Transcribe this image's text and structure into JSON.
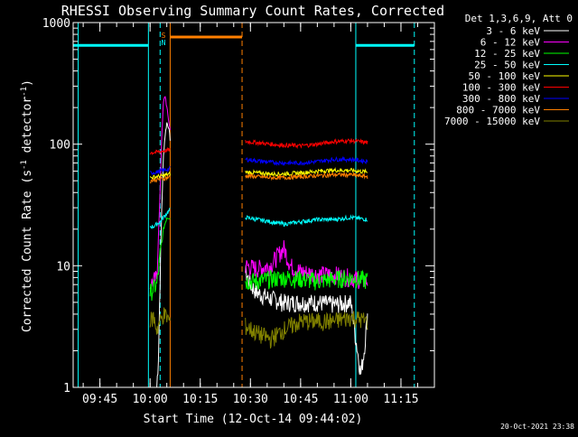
{
  "chart_data": {
    "type": "line",
    "title": "RHESSI Observing Summary Count Rates, Corrected",
    "xlabel": "Start Time (12-Oct-14 09:44:02)",
    "ylabel": "Corrected Count Rate (s",
    "ylabel_sup1": "-1",
    "ylabel_mid": " detector",
    "ylabel_sup2": "-1",
    "ylabel_end": ")",
    "yscale": "log",
    "xlim": [
      "09:37",
      "11:25"
    ],
    "ylim": [
      1,
      1000
    ],
    "x_ticks": [
      "09:45",
      "10:00",
      "10:15",
      "10:30",
      "10:45",
      "11:00",
      "11:15"
    ],
    "y_ticks": [
      "1",
      "10",
      "100",
      "1000"
    ],
    "legend_title": "Det 1,3,6,9, Att 0",
    "legend_placement": "right",
    "timestamp": "20-Oct-2021 23:38",
    "flag_labels": [
      "S",
      "N"
    ],
    "series": [
      {
        "name": "3 - 6 keV",
        "color": "#ffffff",
        "segments": [
          {
            "x": [
              "10:02:00",
              "10:02:30",
              "10:03:00",
              "10:03:30",
              "10:04:00",
              "10:04:30",
              "10:05:00",
              "10:05:30",
              "10:06:00"
            ],
            "y": [
              1,
              1.8,
              8,
              30,
              80,
              120,
              150,
              140,
              110
            ]
          },
          {
            "x": [
              "10:28:30",
              "10:30:00",
              "10:32:00",
              "10:35:00",
              "10:40:00",
              "10:45:00",
              "10:50:00",
              "10:55:00",
              "11:00:00",
              "11:02:00",
              "11:03:00",
              "11:04:00",
              "11:05:00"
            ],
            "y": [
              9,
              7,
              6,
              5.5,
              5,
              5,
              5,
              4.8,
              5,
              2,
              1.3,
              2,
              4
            ]
          }
        ]
      },
      {
        "name": "6 - 12 keV",
        "color": "#ff00ff",
        "segments": [
          {
            "x": [
              "10:00:00",
              "10:01:00",
              "10:02:00",
              "10:03:00",
              "10:03:30",
              "10:04:00",
              "10:04:30",
              "10:05:00",
              "10:05:30",
              "10:06:00"
            ],
            "y": [
              7,
              7.5,
              8,
              40,
              120,
              220,
              250,
              200,
              160,
              130
            ]
          },
          {
            "x": [
              "10:28:30",
              "10:32:00",
              "10:36:00",
              "10:38:00",
              "10:40:00",
              "10:42:00",
              "10:45:00",
              "10:50:00",
              "10:55:00",
              "11:00:00",
              "11:05:00"
            ],
            "y": [
              10,
              9.5,
              10,
              12,
              14,
              10,
              9,
              8.5,
              8.5,
              8,
              7.5
            ]
          }
        ]
      },
      {
        "name": "12 - 25 keV",
        "color": "#00ff00",
        "segments": [
          {
            "x": [
              "10:00:00",
              "10:01:00",
              "10:02:00",
              "10:03:00",
              "10:04:00",
              "10:05:00",
              "10:06:00"
            ],
            "y": [
              6,
              6.5,
              7,
              12,
              20,
              25,
              25
            ]
          },
          {
            "x": [
              "10:28:30",
              "10:32:00",
              "10:36:00",
              "10:40:00",
              "10:45:00",
              "10:50:00",
              "10:55:00",
              "11:00:00",
              "11:05:00"
            ],
            "y": [
              7.5,
              7.5,
              7.8,
              8,
              7.8,
              7.5,
              7.8,
              8,
              7.6
            ]
          }
        ]
      },
      {
        "name": "25 - 50 keV",
        "color": "#00ffff",
        "segments": [
          {
            "x": [
              "10:00:00",
              "10:01:00",
              "10:02:00",
              "10:03:00",
              "10:04:00",
              "10:05:00",
              "10:06:00"
            ],
            "y": [
              21,
              21,
              22,
              23,
              25,
              27,
              29
            ]
          },
          {
            "x": [
              "10:28:30",
              "10:32:00",
              "10:36:00",
              "10:40:00",
              "10:45:00",
              "10:50:00",
              "10:55:00",
              "11:00:00",
              "11:05:00"
            ],
            "y": [
              25,
              24,
              23,
              22,
              23,
              24,
              24,
              25,
              24
            ]
          }
        ]
      },
      {
        "name": "50 - 100 keV",
        "color": "#ffff00",
        "segments": [
          {
            "x": [
              "10:00:00",
              "10:02:00",
              "10:04:00",
              "10:06:00"
            ],
            "y": [
              53,
              54,
              55,
              57
            ]
          },
          {
            "x": [
              "10:28:30",
              "10:32:00",
              "10:36:00",
              "10:40:00",
              "10:45:00",
              "10:50:00",
              "10:55:00",
              "11:00:00",
              "11:05:00"
            ],
            "y": [
              59,
              58,
              57,
              57,
              58,
              60,
              61,
              61,
              59
            ]
          }
        ]
      },
      {
        "name": "100 - 300 keV",
        "color": "#ff0000",
        "segments": [
          {
            "x": [
              "10:00:00",
              "10:02:00",
              "10:04:00",
              "10:06:00"
            ],
            "y": [
              85,
              86,
              88,
              90
            ]
          },
          {
            "x": [
              "10:28:30",
              "10:32:00",
              "10:36:00",
              "10:40:00",
              "10:45:00",
              "10:50:00",
              "10:55:00",
              "11:00:00",
              "11:05:00"
            ],
            "y": [
              105,
              103,
              100,
              98,
              97,
              100,
              105,
              107,
              103
            ]
          }
        ]
      },
      {
        "name": "300 - 800 keV",
        "color": "#0000ff",
        "segments": [
          {
            "x": [
              "10:00:00",
              "10:02:00",
              "10:04:00",
              "10:06:00"
            ],
            "y": [
              58,
              59,
              61,
              63
            ]
          },
          {
            "x": [
              "10:28:30",
              "10:32:00",
              "10:36:00",
              "10:40:00",
              "10:45:00",
              "10:50:00",
              "10:55:00",
              "11:00:00",
              "11:05:00"
            ],
            "y": [
              75,
              73,
              71,
              70,
              70,
              72,
              75,
              75,
              72
            ]
          }
        ]
      },
      {
        "name": "800 - 7000 keV",
        "color": "#ff7f00",
        "segments": [
          {
            "x": [
              "10:00:00",
              "10:02:00",
              "10:04:00",
              "10:06:00"
            ],
            "y": [
              50,
              51,
              52,
              54
            ]
          },
          {
            "x": [
              "10:28:30",
              "10:32:00",
              "10:36:00",
              "10:40:00",
              "10:45:00",
              "10:50:00",
              "10:55:00",
              "11:00:00",
              "11:05:00"
            ],
            "y": [
              55,
              54,
              53,
              53,
              54,
              55,
              56,
              56,
              54
            ]
          }
        ]
      },
      {
        "name": "7000 - 15000 keV",
        "color": "#808000",
        "segments": [
          {
            "x": [
              "10:00:00",
              "10:01:00",
              "10:02:00",
              "10:03:00",
              "10:04:00",
              "10:05:00",
              "10:06:00"
            ],
            "y": [
              3.5,
              3.8,
              3,
              3.5,
              4,
              3.8,
              3.5
            ]
          },
          {
            "x": [
              "10:28:30",
              "10:32:00",
              "10:36:00",
              "10:40:00",
              "10:45:00",
              "10:50:00",
              "10:55:00",
              "11:00:00",
              "11:05:00"
            ],
            "y": [
              3.2,
              2.8,
              2.5,
              3,
              3.5,
              3.5,
              3.5,
              3.8,
              3.5
            ]
          }
        ]
      }
    ],
    "annotations": {
      "night_bars": [
        {
          "color": "#00ffff",
          "x_start": "09:37",
          "x_end": "09:59:30",
          "y": 650
        },
        {
          "color": "#00ffff",
          "x_start": "11:01:30",
          "x_end": "11:19:00",
          "y": 650
        },
        {
          "color": "#ff7f00",
          "x_start": "10:06:00",
          "x_end": "10:27:30",
          "y": 760
        }
      ],
      "vlines": [
        {
          "x": "09:38:30",
          "color": "#00ffff",
          "style": "solid"
        },
        {
          "x": "09:59:30",
          "color": "#00ffff",
          "style": "solid"
        },
        {
          "x": "10:03:00",
          "color": "#00ffff",
          "style": "dashed"
        },
        {
          "x": "10:06:00",
          "color": "#ff7f00",
          "style": "solid"
        },
        {
          "x": "10:27:30",
          "color": "#ff7f00",
          "style": "dashed"
        },
        {
          "x": "11:01:30",
          "color": "#00ffff",
          "style": "solid"
        },
        {
          "x": "11:19:00",
          "color": "#00ffff",
          "style": "dashed"
        }
      ],
      "flag_x": "10:04:00"
    }
  }
}
